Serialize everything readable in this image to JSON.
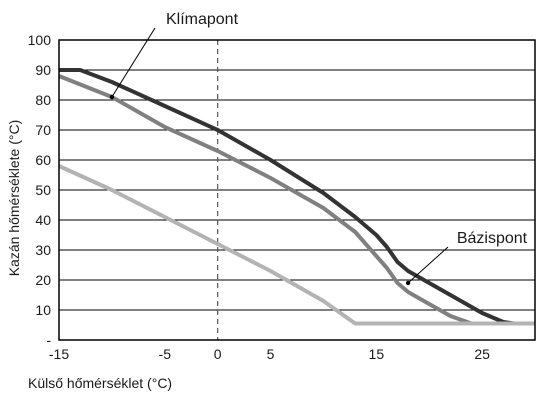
{
  "chart_data": {
    "type": "line",
    "xlabel": "Külső hőmérséklet (°C)",
    "ylabel": "Kazán hőmérséklete (°C)",
    "xlim": [
      -15,
      30
    ],
    "ylim": [
      0,
      100
    ],
    "x_ticks": [
      -15,
      -5,
      0,
      5,
      15,
      25
    ],
    "x_tick_labels": [
      "-15",
      "-5",
      "0",
      "5",
      "15",
      "25"
    ],
    "y_ticks": [
      0,
      10,
      20,
      30,
      40,
      50,
      60,
      70,
      80,
      90,
      100
    ],
    "y_tick_labels": [
      "-",
      "10",
      "20",
      "30",
      "40",
      "50",
      "60",
      "70",
      "80",
      "90",
      "100"
    ],
    "grid": "horizontal",
    "reference_line_x": 0,
    "series": [
      {
        "color": "#333333",
        "x": [
          -15,
          -13,
          -10,
          -5,
          0,
          5,
          10,
          13,
          15,
          16,
          17,
          18,
          20,
          22,
          25,
          27,
          28,
          30
        ],
        "y": [
          90,
          90,
          86,
          78,
          70,
          60,
          49,
          41,
          35,
          31,
          26,
          23,
          19,
          15,
          9,
          6,
          5.5,
          5.5
        ]
      },
      {
        "color": "#808080",
        "x": [
          -15,
          -10,
          -5,
          0,
          5,
          10,
          13,
          15,
          16,
          17,
          18,
          20,
          22,
          24,
          25,
          27,
          30
        ],
        "y": [
          88,
          81,
          71,
          63,
          54,
          44,
          36,
          28,
          24,
          19,
          16,
          12,
          8,
          5.5,
          5.5,
          5.5,
          5.5
        ]
      },
      {
        "color": "#b3b3b3",
        "x": [
          -15,
          -10,
          -5,
          0,
          5,
          10,
          13,
          15,
          20,
          25,
          30
        ],
        "y": [
          58,
          50,
          41,
          32,
          23,
          13,
          5.5,
          5.5,
          5.5,
          5.5,
          5.5
        ]
      }
    ],
    "annotations": [
      {
        "text": "Klímapont",
        "x": -10,
        "y": 81
      },
      {
        "text": "Bázispont",
        "x": 18,
        "y": 19
      }
    ]
  }
}
